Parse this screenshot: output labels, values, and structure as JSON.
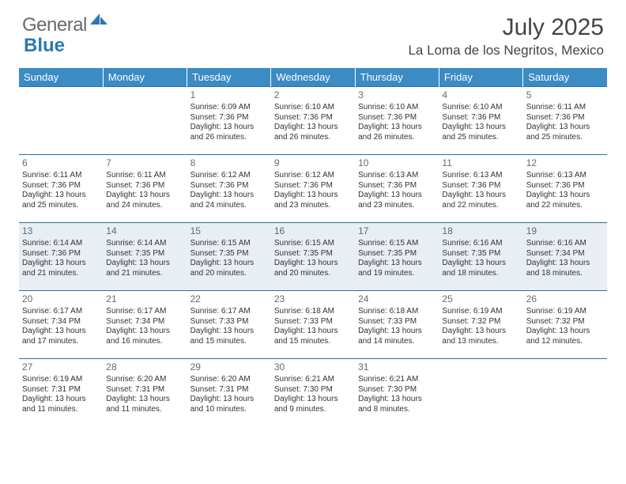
{
  "brand": {
    "part1": "General",
    "part2": "Blue"
  },
  "title": "July 2025",
  "location": "La Loma de los Negritos, Mexico",
  "colors": {
    "header_bg": "#3b8bc4",
    "header_text": "#ffffff",
    "row_border": "#2a6fa0",
    "shaded_bg": "#e8eef3",
    "body_text": "#333333",
    "daynum_text": "#6a6a6a",
    "brand_gray": "#6a6a6a",
    "brand_blue": "#2a7ab0"
  },
  "typography": {
    "title_fontsize": 30,
    "location_fontsize": 17,
    "dayheader_fontsize": 13,
    "cell_fontsize": 10,
    "daynum_fontsize": 12
  },
  "day_headers": [
    "Sunday",
    "Monday",
    "Tuesday",
    "Wednesday",
    "Thursday",
    "Friday",
    "Saturday"
  ],
  "weeks": [
    [
      {
        "day": "",
        "lines": [],
        "shaded": false
      },
      {
        "day": "",
        "lines": [],
        "shaded": false
      },
      {
        "day": "1",
        "lines": [
          "Sunrise: 6:09 AM",
          "Sunset: 7:36 PM",
          "Daylight: 13 hours and 26 minutes."
        ],
        "shaded": false
      },
      {
        "day": "2",
        "lines": [
          "Sunrise: 6:10 AM",
          "Sunset: 7:36 PM",
          "Daylight: 13 hours and 26 minutes."
        ],
        "shaded": false
      },
      {
        "day": "3",
        "lines": [
          "Sunrise: 6:10 AM",
          "Sunset: 7:36 PM",
          "Daylight: 13 hours and 26 minutes."
        ],
        "shaded": false
      },
      {
        "day": "4",
        "lines": [
          "Sunrise: 6:10 AM",
          "Sunset: 7:36 PM",
          "Daylight: 13 hours and 25 minutes."
        ],
        "shaded": false
      },
      {
        "day": "5",
        "lines": [
          "Sunrise: 6:11 AM",
          "Sunset: 7:36 PM",
          "Daylight: 13 hours and 25 minutes."
        ],
        "shaded": false
      }
    ],
    [
      {
        "day": "6",
        "lines": [
          "Sunrise: 6:11 AM",
          "Sunset: 7:36 PM",
          "Daylight: 13 hours and 25 minutes."
        ],
        "shaded": false
      },
      {
        "day": "7",
        "lines": [
          "Sunrise: 6:11 AM",
          "Sunset: 7:36 PM",
          "Daylight: 13 hours and 24 minutes."
        ],
        "shaded": false
      },
      {
        "day": "8",
        "lines": [
          "Sunrise: 6:12 AM",
          "Sunset: 7:36 PM",
          "Daylight: 13 hours and 24 minutes."
        ],
        "shaded": false
      },
      {
        "day": "9",
        "lines": [
          "Sunrise: 6:12 AM",
          "Sunset: 7:36 PM",
          "Daylight: 13 hours and 23 minutes."
        ],
        "shaded": false
      },
      {
        "day": "10",
        "lines": [
          "Sunrise: 6:13 AM",
          "Sunset: 7:36 PM",
          "Daylight: 13 hours and 23 minutes."
        ],
        "shaded": false
      },
      {
        "day": "11",
        "lines": [
          "Sunrise: 6:13 AM",
          "Sunset: 7:36 PM",
          "Daylight: 13 hours and 22 minutes."
        ],
        "shaded": false
      },
      {
        "day": "12",
        "lines": [
          "Sunrise: 6:13 AM",
          "Sunset: 7:36 PM",
          "Daylight: 13 hours and 22 minutes."
        ],
        "shaded": false
      }
    ],
    [
      {
        "day": "13",
        "lines": [
          "Sunrise: 6:14 AM",
          "Sunset: 7:36 PM",
          "Daylight: 13 hours and 21 minutes."
        ],
        "shaded": true
      },
      {
        "day": "14",
        "lines": [
          "Sunrise: 6:14 AM",
          "Sunset: 7:35 PM",
          "Daylight: 13 hours and 21 minutes."
        ],
        "shaded": true
      },
      {
        "day": "15",
        "lines": [
          "Sunrise: 6:15 AM",
          "Sunset: 7:35 PM",
          "Daylight: 13 hours and 20 minutes."
        ],
        "shaded": true
      },
      {
        "day": "16",
        "lines": [
          "Sunrise: 6:15 AM",
          "Sunset: 7:35 PM",
          "Daylight: 13 hours and 20 minutes."
        ],
        "shaded": true
      },
      {
        "day": "17",
        "lines": [
          "Sunrise: 6:15 AM",
          "Sunset: 7:35 PM",
          "Daylight: 13 hours and 19 minutes."
        ],
        "shaded": true
      },
      {
        "day": "18",
        "lines": [
          "Sunrise: 6:16 AM",
          "Sunset: 7:35 PM",
          "Daylight: 13 hours and 18 minutes."
        ],
        "shaded": true
      },
      {
        "day": "19",
        "lines": [
          "Sunrise: 6:16 AM",
          "Sunset: 7:34 PM",
          "Daylight: 13 hours and 18 minutes."
        ],
        "shaded": true
      }
    ],
    [
      {
        "day": "20",
        "lines": [
          "Sunrise: 6:17 AM",
          "Sunset: 7:34 PM",
          "Daylight: 13 hours and 17 minutes."
        ],
        "shaded": false
      },
      {
        "day": "21",
        "lines": [
          "Sunrise: 6:17 AM",
          "Sunset: 7:34 PM",
          "Daylight: 13 hours and 16 minutes."
        ],
        "shaded": false
      },
      {
        "day": "22",
        "lines": [
          "Sunrise: 6:17 AM",
          "Sunset: 7:33 PM",
          "Daylight: 13 hours and 15 minutes."
        ],
        "shaded": false
      },
      {
        "day": "23",
        "lines": [
          "Sunrise: 6:18 AM",
          "Sunset: 7:33 PM",
          "Daylight: 13 hours and 15 minutes."
        ],
        "shaded": false
      },
      {
        "day": "24",
        "lines": [
          "Sunrise: 6:18 AM",
          "Sunset: 7:33 PM",
          "Daylight: 13 hours and 14 minutes."
        ],
        "shaded": false
      },
      {
        "day": "25",
        "lines": [
          "Sunrise: 6:19 AM",
          "Sunset: 7:32 PM",
          "Daylight: 13 hours and 13 minutes."
        ],
        "shaded": false
      },
      {
        "day": "26",
        "lines": [
          "Sunrise: 6:19 AM",
          "Sunset: 7:32 PM",
          "Daylight: 13 hours and 12 minutes."
        ],
        "shaded": false
      }
    ],
    [
      {
        "day": "27",
        "lines": [
          "Sunrise: 6:19 AM",
          "Sunset: 7:31 PM",
          "Daylight: 13 hours and 11 minutes."
        ],
        "shaded": false
      },
      {
        "day": "28",
        "lines": [
          "Sunrise: 6:20 AM",
          "Sunset: 7:31 PM",
          "Daylight: 13 hours and 11 minutes."
        ],
        "shaded": false
      },
      {
        "day": "29",
        "lines": [
          "Sunrise: 6:20 AM",
          "Sunset: 7:31 PM",
          "Daylight: 13 hours and 10 minutes."
        ],
        "shaded": false
      },
      {
        "day": "30",
        "lines": [
          "Sunrise: 6:21 AM",
          "Sunset: 7:30 PM",
          "Daylight: 13 hours and 9 minutes."
        ],
        "shaded": false
      },
      {
        "day": "31",
        "lines": [
          "Sunrise: 6:21 AM",
          "Sunset: 7:30 PM",
          "Daylight: 13 hours and 8 minutes."
        ],
        "shaded": false
      },
      {
        "day": "",
        "lines": [],
        "shaded": false
      },
      {
        "day": "",
        "lines": [],
        "shaded": false
      }
    ]
  ]
}
